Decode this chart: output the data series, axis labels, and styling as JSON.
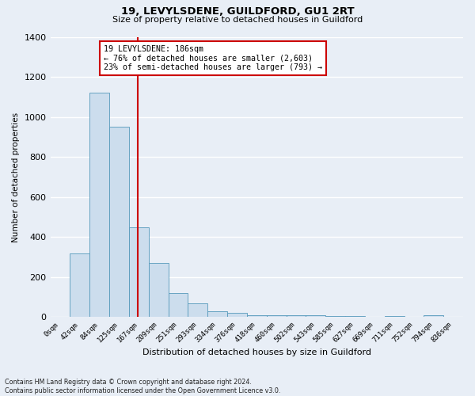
{
  "title": "19, LEVYLSDENE, GUILDFORD, GU1 2RT",
  "subtitle": "Size of property relative to detached houses in Guildford",
  "xlabel": "Distribution of detached houses by size in Guildford",
  "ylabel": "Number of detached properties",
  "footnote": "Contains HM Land Registry data © Crown copyright and database right 2024.\nContains public sector information licensed under the Open Government Licence v3.0.",
  "bin_labels": [
    "0sqm",
    "42sqm",
    "84sqm",
    "125sqm",
    "167sqm",
    "209sqm",
    "251sqm",
    "293sqm",
    "334sqm",
    "376sqm",
    "418sqm",
    "460sqm",
    "502sqm",
    "543sqm",
    "585sqm",
    "627sqm",
    "669sqm",
    "711sqm",
    "752sqm",
    "794sqm",
    "836sqm"
  ],
  "bar_values": [
    2,
    320,
    1120,
    950,
    450,
    270,
    120,
    70,
    30,
    20,
    10,
    10,
    10,
    10,
    5,
    5,
    0,
    5,
    0,
    10,
    0
  ],
  "bar_color": "#ccdded",
  "bar_edge_color": "#5599bb",
  "property_line_x": 4.45,
  "property_line_label": "19 LEVYLSDENE: 186sqm",
  "annotation_line1": "← 76% of detached houses are smaller (2,603)",
  "annotation_line2": "23% of semi-detached houses are larger (793) →",
  "line_color": "#cc0000",
  "ylim": [
    0,
    1400
  ],
  "yticks": [
    0,
    200,
    400,
    600,
    800,
    1000,
    1200,
    1400
  ],
  "bg_color": "#e8eef6",
  "axes_bg": "#e8eef6",
  "grid_color": "#ffffff",
  "annotation_box_color": "#ffffff",
  "annotation_box_edge": "#cc0000",
  "title_fontsize": 9,
  "subtitle_fontsize": 8
}
